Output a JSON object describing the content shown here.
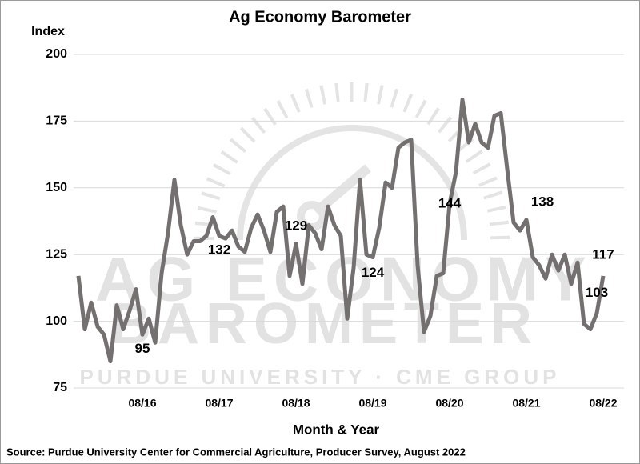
{
  "chart_data": {
    "type": "line",
    "title": "Ag Economy Barometer",
    "y_label": "Index",
    "x_label": "Month & Year",
    "source": "Source: Purdue University Center for Commercial Agriculture, Producer Survey, August 2022",
    "watermark": [
      "AG ECONOMY",
      "BAROMETER",
      "PURDUE UNIVERSITY  ·  CME GROUP"
    ],
    "categories": [
      null,
      null,
      null,
      null,
      null,
      null,
      null,
      null,
      null,
      null,
      "08/16",
      null,
      null,
      null,
      null,
      null,
      null,
      null,
      null,
      null,
      null,
      null,
      "08/17",
      null,
      null,
      null,
      null,
      null,
      null,
      null,
      null,
      null,
      null,
      null,
      "08/18",
      null,
      null,
      null,
      null,
      null,
      null,
      null,
      null,
      null,
      null,
      null,
      "08/19",
      null,
      null,
      null,
      null,
      null,
      null,
      null,
      null,
      null,
      null,
      null,
      "08/20",
      null,
      null,
      null,
      null,
      null,
      null,
      null,
      null,
      null,
      null,
      null,
      "08/21",
      null,
      null,
      null,
      null,
      null,
      null,
      null,
      null,
      null,
      null,
      null,
      "08/22"
    ],
    "series": [
      {
        "name": "Index",
        "color": "#757070",
        "values": [
          117,
          97,
          107,
          98,
          95,
          85,
          106,
          97,
          104,
          112,
          95,
          101,
          92,
          118,
          133,
          153,
          136,
          125,
          130,
          130,
          132,
          139,
          132,
          131,
          134,
          128,
          126,
          135,
          140,
          134,
          126,
          141,
          143,
          117,
          129,
          114,
          136,
          133,
          127,
          143,
          136,
          132,
          101,
          120,
          153,
          125,
          124,
          135,
          152,
          150,
          165,
          167,
          168,
          121,
          96,
          102,
          117,
          118,
          144,
          156,
          183,
          167,
          174,
          167,
          165,
          177,
          178,
          157,
          137,
          134,
          138,
          124,
          121,
          116,
          125,
          119,
          125,
          114,
          122,
          99,
          97,
          103,
          117
        ]
      }
    ],
    "ylim": [
      75,
      200
    ],
    "yticks": [
      75,
      100,
      125,
      150,
      175,
      200
    ],
    "grid": true
  }
}
